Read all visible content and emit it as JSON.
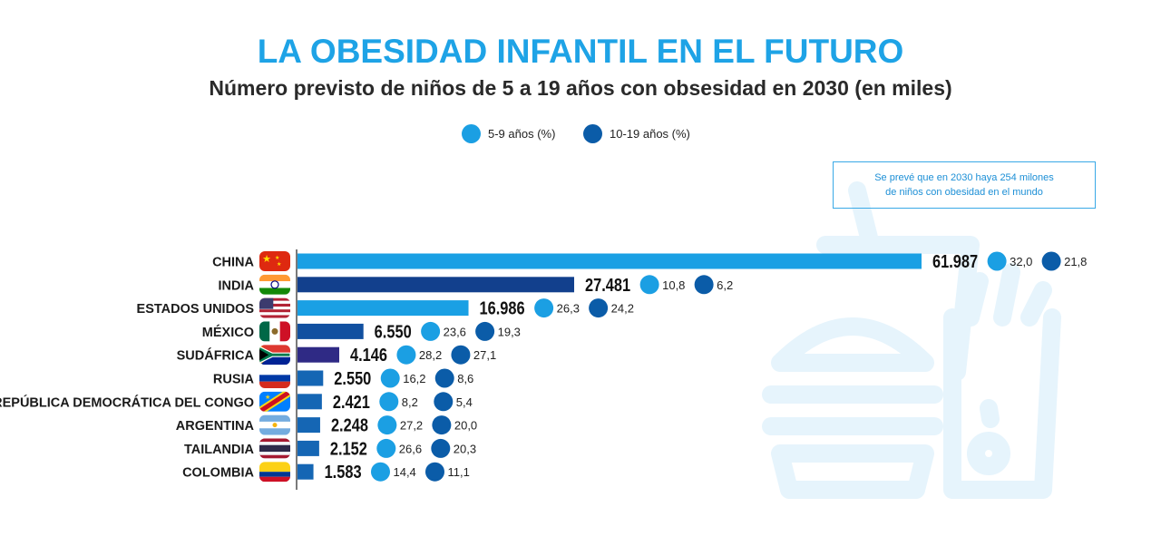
{
  "colors": {
    "title": "#1ea3e6",
    "young": "#1b9fe3",
    "older": "#0b5ca8",
    "bar_china": "#1aa0e4",
    "bar_india": "#12408d",
    "bar_usa": "#1aa0e4",
    "bar_mexico": "#1150a0",
    "bar_sudafrica": "#2f2a85",
    "bar_other": "#1566b4",
    "note_border": "#39a9e6",
    "note_text": "#1c8fd6",
    "watermark": "#e6f4fc"
  },
  "header": {
    "title": "LA OBESIDAD INFANTIL EN EL FUTURO",
    "subtitle": "Número previsto de niños de 5 a 19 años con obsesidad en 2030 (en miles)"
  },
  "legend": {
    "young_label": "5-9 años (%)",
    "older_label": "10-19 años (%)"
  },
  "note": {
    "line1": "Se prevé que en 2030 haya 254 milones",
    "line2": "de niños con obesidad en el mundo"
  },
  "chart_data": {
    "type": "bar",
    "orientation": "horizontal",
    "title": "LA OBESIDAD INFANTIL EN EL FUTURO",
    "subtitle": "Número previsto de niños de 5 a 19 años con obsesidad en 2030 (en miles)",
    "xlim": [
      0,
      61987
    ],
    "categories": [
      "CHINA",
      "INDIA",
      "ESTADOS UNIDOS",
      "MÉXICO",
      "SUDÁFRICA",
      "RUSIA",
      "REPÚBLICA DEMOCRÁTICA DEL CONGO",
      "ARGENTINA",
      "TAILANDIA",
      "COLOMBIA"
    ],
    "values": [
      61987,
      27481,
      16986,
      6550,
      4146,
      2550,
      2421,
      2248,
      2152,
      1583
    ],
    "value_labels": [
      "61.987",
      "27.481",
      "16.986",
      "6.550",
      "4.146",
      "2.550",
      "2.421",
      "2.248",
      "2.152",
      "1.583"
    ],
    "bar_color_keys": [
      "bar_china",
      "bar_india",
      "bar_usa",
      "bar_mexico",
      "bar_sudafrica",
      "bar_other",
      "bar_other",
      "bar_other",
      "bar_other",
      "bar_other"
    ],
    "series": [
      {
        "name": "5-9 años (%)",
        "values": [
          32.0,
          10.8,
          26.3,
          23.6,
          28.2,
          16.2,
          8.2,
          27.2,
          26.6,
          14.4
        ],
        "labels": [
          "32,0",
          "10,8",
          "26,3",
          "23,6",
          "28,2",
          "16,2",
          "8,2",
          "27,2",
          "26,6",
          "14,4"
        ]
      },
      {
        "name": "10-19 años (%)",
        "values": [
          21.8,
          6.2,
          24.2,
          19.3,
          27.1,
          8.6,
          5.4,
          20.0,
          20.3,
          11.1
        ],
        "labels": [
          "21,8",
          "6,2",
          "24,2",
          "19,3",
          "27,1",
          "8,6",
          "5,4",
          "20,0",
          "20,3",
          "11,1"
        ]
      }
    ]
  },
  "flags": [
    "china-flag-icon",
    "india-flag-icon",
    "usa-flag-icon",
    "mexico-flag-icon",
    "south-africa-flag-icon",
    "russia-flag-icon",
    "drc-flag-icon",
    "argentina-flag-icon",
    "thailand-flag-icon",
    "colombia-flag-icon"
  ]
}
